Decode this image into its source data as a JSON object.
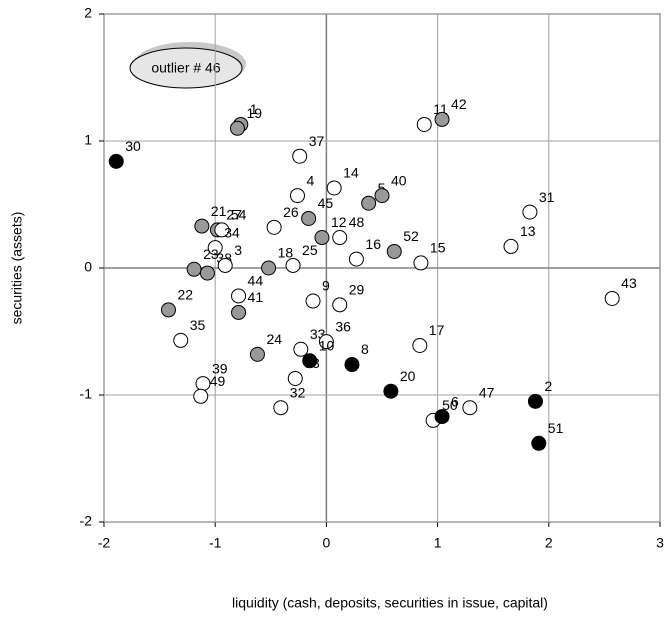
{
  "chart_data": {
    "type": "scatter",
    "x_label": "liquidity (cash, deposits, securities in issue, capital)",
    "y_label": "securities (assets)",
    "annotation": "outlier # 46",
    "xlim": [
      -2,
      3
    ],
    "xticks": [
      -2,
      -1,
      0,
      1,
      2,
      3
    ],
    "ylim": [
      -2,
      2
    ],
    "yticks": [
      -2,
      -1,
      0,
      1,
      2
    ],
    "grid": true,
    "labels": [
      "30",
      "1",
      "19",
      "37",
      "11",
      "42",
      "14",
      "4",
      "5",
      "40",
      "31",
      "26",
      "45",
      "12",
      "48",
      "16",
      "52",
      "21",
      "27",
      "54",
      "13",
      "15",
      "34",
      "23",
      "38",
      "3",
      "18",
      "25",
      "43",
      "22",
      "44",
      "9",
      "29",
      "41",
      "35",
      "24",
      "33",
      "36",
      "17",
      "10",
      "8",
      "20",
      "39",
      "49",
      "53",
      "32",
      "47",
      "2",
      "50",
      "6",
      "51"
    ],
    "x": [
      -1.89,
      -0.77,
      -0.8,
      -0.24,
      0.88,
      1.04,
      0.07,
      -0.26,
      0.38,
      0.5,
      1.83,
      -0.47,
      -0.16,
      -0.04,
      0.12,
      0.27,
      0.61,
      -1.12,
      -0.98,
      -0.94,
      1.66,
      0.85,
      -1.0,
      -1.19,
      -1.07,
      -0.91,
      -0.52,
      -0.3,
      2.57,
      -1.42,
      -0.79,
      -0.12,
      0.12,
      -0.79,
      -1.31,
      -0.62,
      -0.23,
      0.0,
      0.84,
      -0.15,
      0.23,
      0.58,
      -1.11,
      -1.13,
      -0.28,
      -0.41,
      1.29,
      1.88,
      0.96,
      1.04,
      1.91
    ],
    "y": [
      0.84,
      1.13,
      1.1,
      0.88,
      1.13,
      1.17,
      0.63,
      0.57,
      0.51,
      0.57,
      0.44,
      0.32,
      0.39,
      0.24,
      0.24,
      0.07,
      0.13,
      0.33,
      0.3,
      0.3,
      0.17,
      0.04,
      0.16,
      -0.01,
      -0.04,
      0.02,
      0.0,
      0.02,
      -0.24,
      -0.33,
      -0.22,
      -0.26,
      -0.29,
      -0.35,
      -0.57,
      -0.68,
      -0.64,
      -0.58,
      -0.61,
      -0.73,
      -0.76,
      -0.97,
      -0.91,
      -1.01,
      -0.87,
      -1.1,
      -1.1,
      -1.05,
      -1.2,
      -1.17,
      -1.38
    ],
    "colors": [
      "#000000",
      "#999999",
      "#999999",
      "#ffffff",
      "#ffffff",
      "#999999",
      "#ffffff",
      "#ffffff",
      "#999999",
      "#999999",
      "#ffffff",
      "#ffffff",
      "#999999",
      "#999999",
      "#ffffff",
      "#ffffff",
      "#999999",
      "#999999",
      "#999999",
      "#ffffff",
      "#ffffff",
      "#ffffff",
      "#ffffff",
      "#999999",
      "#999999",
      "#ffffff",
      "#999999",
      "#ffffff",
      "#ffffff",
      "#999999",
      "#ffffff",
      "#ffffff",
      "#ffffff",
      "#999999",
      "#ffffff",
      "#999999",
      "#ffffff",
      "#ffffff",
      "#ffffff",
      "#000000",
      "#000000",
      "#000000",
      "#ffffff",
      "#ffffff",
      "#ffffff",
      "#ffffff",
      "#ffffff",
      "#000000",
      "#ffffff",
      "#000000",
      "#000000"
    ]
  }
}
